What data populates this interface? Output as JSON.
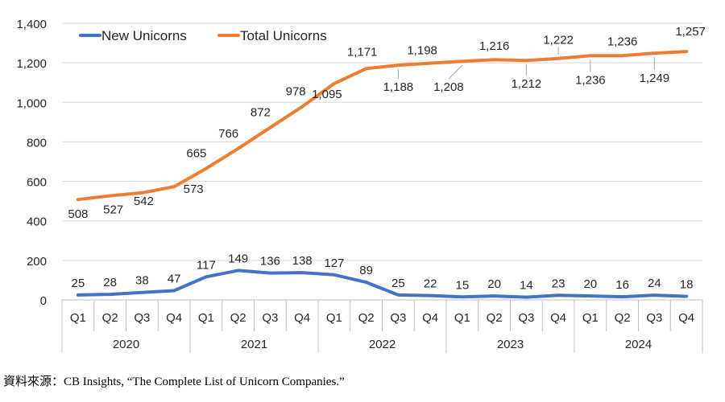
{
  "chart_data": {
    "type": "line",
    "title": "",
    "xlabel": "",
    "ylabel": "",
    "ylim": [
      0,
      1400
    ],
    "yticks": [
      0,
      200,
      400,
      600,
      800,
      1000,
      1200,
      1400
    ],
    "ytick_labels": [
      "0",
      "200",
      "400",
      "600",
      "800",
      "1,000",
      "1,200",
      "1,400"
    ],
    "grid": "horizontal",
    "legend_position": "top-left",
    "categories": [
      "Q1",
      "Q2",
      "Q3",
      "Q4",
      "Q1",
      "Q2",
      "Q3",
      "Q4",
      "Q1",
      "Q2",
      "Q3",
      "Q4",
      "Q1",
      "Q2",
      "Q3",
      "Q4",
      "Q1",
      "Q2",
      "Q3",
      "Q4"
    ],
    "years": [
      "2020",
      "2021",
      "2022",
      "2023",
      "2024"
    ],
    "series": [
      {
        "name": "New Unicorns",
        "color": "#4472C4",
        "values": [
          25,
          28,
          38,
          47,
          117,
          149,
          136,
          138,
          127,
          89,
          25,
          22,
          15,
          20,
          14,
          23,
          20,
          16,
          24,
          18
        ],
        "labels": [
          "25",
          "28",
          "38",
          "47",
          "117",
          "149",
          "136",
          "138",
          "127",
          "89",
          "25",
          "22",
          "15",
          "20",
          "14",
          "23",
          "20",
          "16",
          "24",
          "18"
        ]
      },
      {
        "name": "Total Unicorns",
        "color": "#ED7D31",
        "values": [
          508,
          527,
          542,
          573,
          665,
          766,
          872,
          978,
          1095,
          1171,
          1188,
          1198,
          1208,
          1216,
          1212,
          1222,
          1236,
          1236,
          1249,
          1257
        ],
        "labels": [
          "508",
          "527",
          "542",
          "573",
          "665",
          "766",
          "872",
          "978",
          "1,095",
          "1,171",
          "1,188",
          "1,198",
          "1,208",
          "1,216",
          "1,212",
          "1,222",
          "1,236",
          "1,236",
          "1,249",
          "1,257"
        ]
      }
    ]
  },
  "source": "資料來源：CB Insights, “The Complete List of Unicorn Companies.”"
}
